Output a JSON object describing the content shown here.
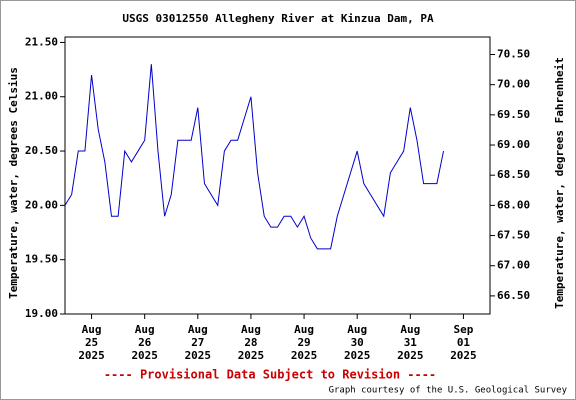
{
  "chart_data": {
    "type": "line",
    "title": "USGS 03012550 Allegheny River at Kinzua Dam, PA",
    "ylabel": "Temperature, water, degrees Celsius",
    "y2label": "Temperature, water, degrees Fahrenheit",
    "annotations": [
      "---- Provisional Data Subject to Revision ----",
      "Graph courtesy of the U.S. Geological Survey"
    ],
    "x": [
      "2025-08-24T12:00",
      "2025-08-24T15:00",
      "2025-08-24T18:00",
      "2025-08-24T21:00",
      "2025-08-25T00:00",
      "2025-08-25T03:00",
      "2025-08-25T06:00",
      "2025-08-25T09:00",
      "2025-08-25T12:00",
      "2025-08-25T15:00",
      "2025-08-25T18:00",
      "2025-08-25T21:00",
      "2025-08-26T00:00",
      "2025-08-26T03:00",
      "2025-08-26T06:00",
      "2025-08-26T09:00",
      "2025-08-26T12:00",
      "2025-08-26T15:00",
      "2025-08-26T18:00",
      "2025-08-26T21:00",
      "2025-08-27T00:00",
      "2025-08-27T03:00",
      "2025-08-27T06:00",
      "2025-08-27T09:00",
      "2025-08-27T12:00",
      "2025-08-27T15:00",
      "2025-08-27T18:00",
      "2025-08-27T21:00",
      "2025-08-28T00:00",
      "2025-08-28T03:00",
      "2025-08-28T06:00",
      "2025-08-28T09:00",
      "2025-08-28T12:00",
      "2025-08-28T15:00",
      "2025-08-28T18:00",
      "2025-08-28T21:00",
      "2025-08-29T00:00",
      "2025-08-29T03:00",
      "2025-08-29T06:00",
      "2025-08-29T09:00",
      "2025-08-29T12:00",
      "2025-08-29T15:00",
      "2025-08-29T18:00",
      "2025-08-29T21:00",
      "2025-08-30T00:00",
      "2025-08-30T03:00",
      "2025-08-30T06:00",
      "2025-08-30T09:00",
      "2025-08-30T12:00",
      "2025-08-30T15:00",
      "2025-08-30T18:00",
      "2025-08-30T21:00",
      "2025-08-31T00:00",
      "2025-08-31T03:00",
      "2025-08-31T06:00",
      "2025-08-31T09:00",
      "2025-08-31T12:00",
      "2025-08-31T15:00"
    ],
    "series": [
      {
        "color": "#0000cc",
        "values": [
          20.0,
          20.1,
          20.5,
          20.5,
          21.2,
          20.7,
          20.4,
          19.9,
          19.9,
          20.5,
          20.4,
          20.5,
          20.6,
          21.3,
          20.5,
          19.9,
          20.1,
          20.6,
          20.6,
          20.6,
          20.9,
          20.2,
          20.1,
          20.0,
          20.5,
          20.6,
          20.6,
          20.8,
          21.0,
          20.3,
          19.9,
          19.8,
          19.8,
          19.9,
          19.9,
          19.8,
          19.9,
          19.7,
          19.6,
          19.6,
          19.6,
          19.9,
          20.1,
          20.3,
          20.5,
          20.2,
          20.1,
          20.0,
          19.9,
          20.3,
          20.4,
          20.5,
          20.9,
          20.6,
          20.2,
          20.2,
          20.2,
          20.5
        ]
      }
    ],
    "xlim": [
      "2025-08-24T12:00",
      "2025-09-01T12:00"
    ],
    "xticks": [
      {
        "value": "2025-08-25",
        "label": [
          "Aug",
          "25",
          "2025"
        ]
      },
      {
        "value": "2025-08-26",
        "label": [
          "Aug",
          "26",
          "2025"
        ]
      },
      {
        "value": "2025-08-27",
        "label": [
          "Aug",
          "27",
          "2025"
        ]
      },
      {
        "value": "2025-08-28",
        "label": [
          "Aug",
          "28",
          "2025"
        ]
      },
      {
        "value": "2025-08-29",
        "label": [
          "Aug",
          "29",
          "2025"
        ]
      },
      {
        "value": "2025-08-30",
        "label": [
          "Aug",
          "30",
          "2025"
        ]
      },
      {
        "value": "2025-08-31",
        "label": [
          "Aug",
          "31",
          "2025"
        ]
      },
      {
        "value": "2025-09-01",
        "label": [
          "Sep",
          "01",
          "2025"
        ]
      }
    ],
    "ylim": [
      19.0,
      21.55
    ],
    "yticks": [
      {
        "value": 19.0,
        "label": "19.00"
      },
      {
        "value": 19.5,
        "label": "19.50"
      },
      {
        "value": 20.0,
        "label": "20.00"
      },
      {
        "value": 20.5,
        "label": "20.50"
      },
      {
        "value": 21.0,
        "label": "21.00"
      },
      {
        "value": 21.5,
        "label": "21.50"
      }
    ],
    "y2lim": [
      66.2,
      70.79
    ],
    "y2ticks": [
      {
        "value": 66.5,
        "label": "66.50"
      },
      {
        "value": 67.0,
        "label": "67.00"
      },
      {
        "value": 67.5,
        "label": "67.50"
      },
      {
        "value": 68.0,
        "label": "68.00"
      },
      {
        "value": 68.5,
        "label": "68.50"
      },
      {
        "value": 69.0,
        "label": "69.00"
      },
      {
        "value": 69.5,
        "label": "69.50"
      },
      {
        "value": 70.0,
        "label": "70.00"
      },
      {
        "value": 70.5,
        "label": "70.50"
      }
    ]
  }
}
